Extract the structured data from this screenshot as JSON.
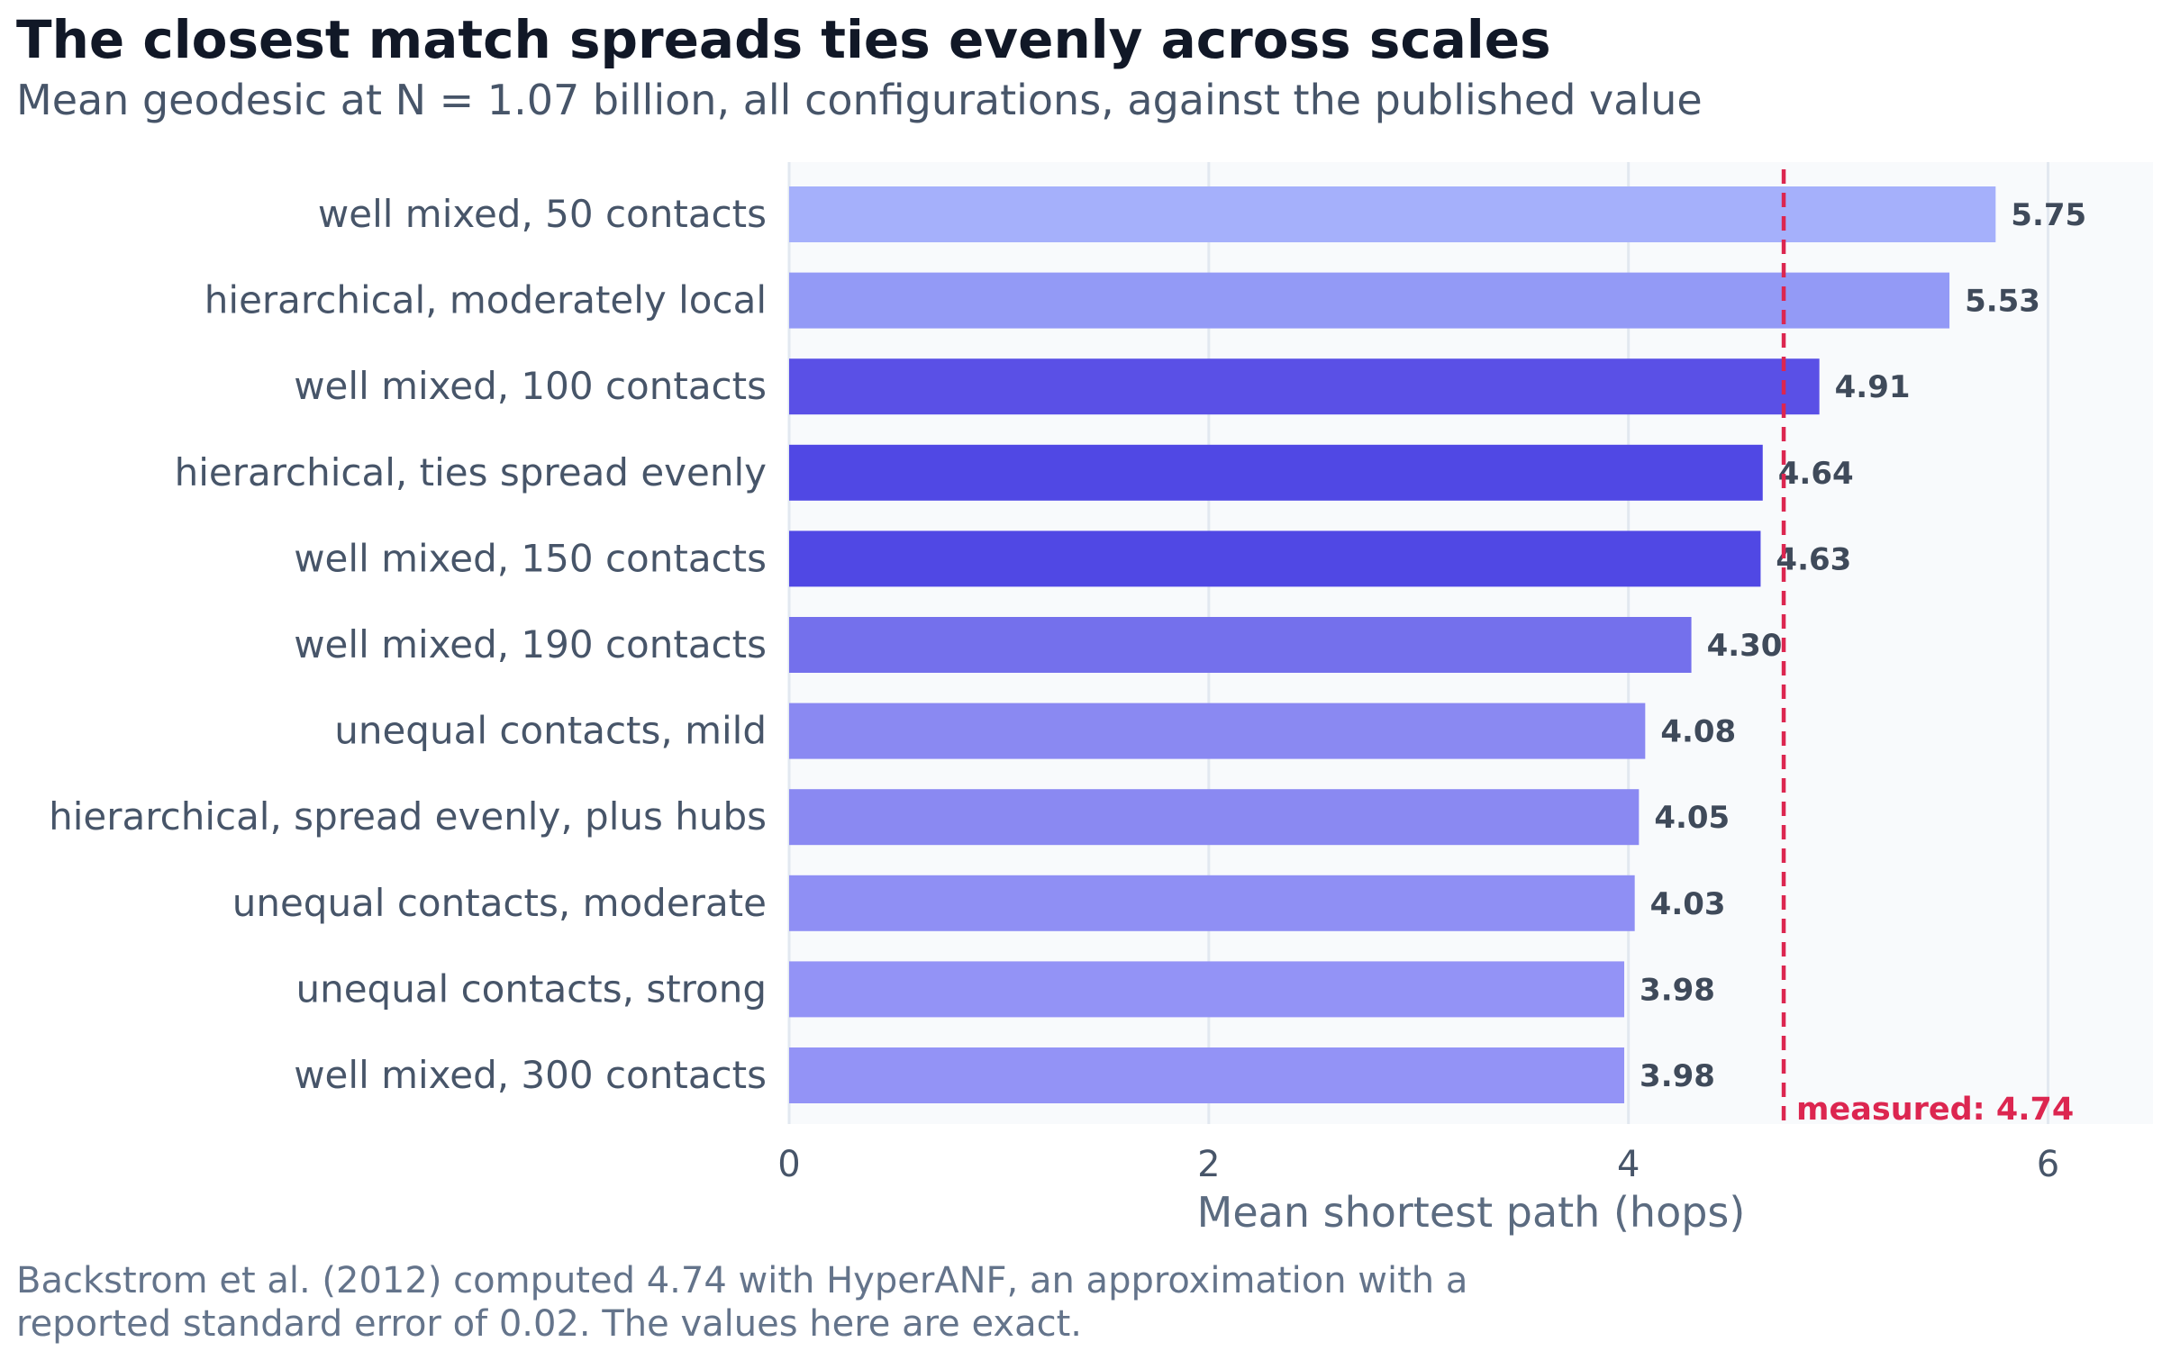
{
  "title": "The closest match spreads ties evenly across scales",
  "subtitle": "Mean geodesic at N = 1.07 billion, all configurations, against the published value",
  "footnote": "Backstrom et al. (2012) computed 4.74 with HyperANF, an approximation with a\nreported standard error of 0.02. The values here are exact.",
  "chart_data": {
    "type": "bar",
    "orientation": "horizontal",
    "categories": [
      "well mixed, 50 contacts",
      "hierarchical, moderately local",
      "well mixed, 100 contacts",
      "hierarchical, ties spread evenly",
      "well mixed, 150 contacts",
      "well mixed, 190 contacts",
      "unequal contacts, mild",
      "hierarchical, spread evenly, plus hubs",
      "unequal contacts, moderate",
      "unequal contacts, strong",
      "well mixed, 300 contacts"
    ],
    "values": [
      5.75,
      5.53,
      4.91,
      4.64,
      4.63,
      4.3,
      4.08,
      4.05,
      4.03,
      3.98,
      3.98
    ],
    "value_labels": [
      "5.75",
      "5.53",
      "4.91",
      "4.64",
      "4.63",
      "4.30",
      "4.08",
      "4.05",
      "4.03",
      "3.98",
      "3.98"
    ],
    "bar_colors": [
      "#a5b0fb",
      "#939af6",
      "#5a50e6",
      "#5048e4",
      "#5048e4",
      "#7470ec",
      "#8a89f2",
      "#8a89f2",
      "#8f8ff4",
      "#9393f6",
      "#9393f6"
    ],
    "xlabel": "Mean shortest path (hops)",
    "xlim": [
      0,
      6.5
    ],
    "xticks": [
      0,
      2,
      4,
      6
    ],
    "xtick_labels": [
      "0",
      "2",
      "4",
      "6"
    ],
    "grid": "vertical",
    "reference_line": {
      "value": 4.74,
      "label": "measured: 4.74",
      "color": "#dc2650",
      "style": "dashed"
    },
    "plot_background": "#f8fafc",
    "grid_color": "#e2e8f0"
  }
}
